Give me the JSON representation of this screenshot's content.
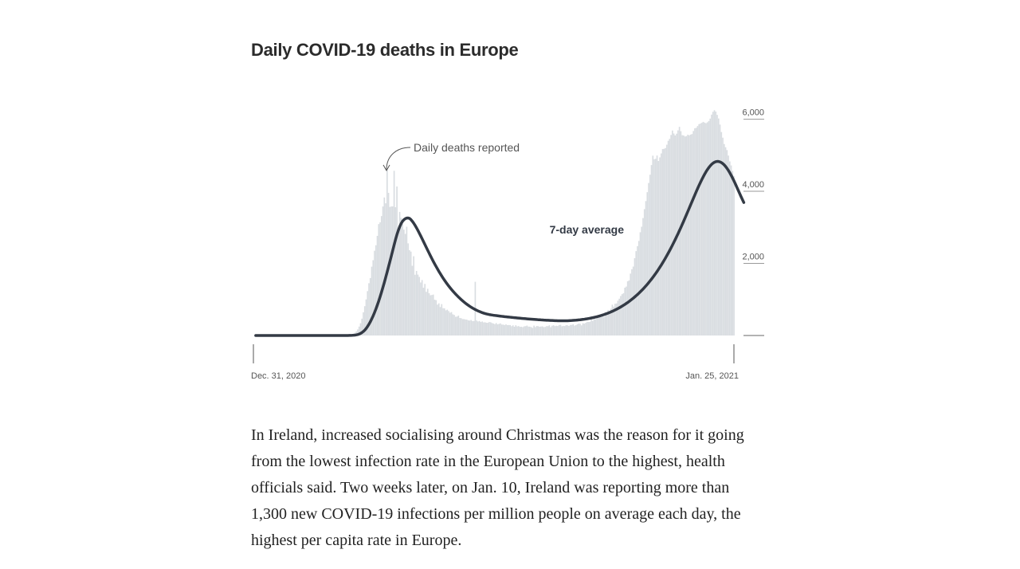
{
  "chart_data": {
    "type": "bar",
    "title": "Daily COVID-19 deaths in Europe",
    "y_ticks": [
      0,
      2000,
      4000,
      6000
    ],
    "y_tick_labels": [
      "",
      "2,000",
      "4,000",
      "6,000"
    ],
    "ylim": [
      0,
      6300
    ],
    "x_start_label": "Dec. 31, 2020",
    "x_end_label": "Jan. 25, 2021",
    "annotations": {
      "daily": "Daily deaths reported",
      "average": "7-day average"
    },
    "colors": {
      "bars": "#d9dde1",
      "line": "#333a45",
      "axis": "#9a9a9a"
    },
    "series": [
      {
        "name": "Daily deaths reported",
        "values": [
          0,
          0,
          0,
          0,
          0,
          0,
          0,
          0,
          0,
          0,
          0,
          0,
          0,
          0,
          0,
          0,
          0,
          0,
          0,
          0,
          0,
          0,
          0,
          0,
          0,
          0,
          0,
          0,
          0,
          0,
          0,
          0,
          0,
          0,
          0,
          0,
          0,
          0,
          0,
          0,
          0,
          0,
          0,
          0,
          0,
          0,
          0,
          0,
          0,
          0,
          0,
          0,
          0,
          0,
          0,
          0,
          0,
          0,
          0,
          0,
          0,
          0,
          1,
          2,
          3,
          5,
          8,
          13,
          21,
          33,
          51,
          78,
          115,
          169,
          247,
          339,
          468,
          644,
          813,
          1001,
          1231,
          1451,
          1593,
          1909,
          2089,
          2351,
          2504,
          2764,
          3091,
          3138,
          3312,
          3579,
          3829,
          3667,
          4587,
          3957,
          3566,
          3580,
          3581,
          4569,
          3558,
          4134,
          2857,
          3428,
          3262,
          3093,
          2937,
          2819,
          3016,
          2556,
          2366,
          2327,
          1934,
          2198,
          1685,
          1790,
          1689,
          1624,
          1470,
          1539,
          1325,
          1431,
          1211,
          1296,
          1173,
          1117,
          1124,
          1135,
          993,
          981,
          856,
          892,
          790,
          871,
          758,
          754,
          698,
          717,
          678,
          632,
          650,
          587,
          570,
          519,
          525,
          552,
          487,
          479,
          456,
          456,
          444,
          440,
          420,
          414,
          430,
          402,
          402,
          1490,
          416,
          390,
          403,
          375,
          389,
          365,
          367,
          353,
          353,
          373,
          368,
          347,
          332,
          316,
          345,
          310,
          323,
          336,
          304,
          302,
          291,
          308,
          289,
          290,
          289,
          258,
          282,
          243,
          284,
          253,
          262,
          241,
          242,
          232,
          254,
          259,
          275,
          247,
          245,
          234,
          211,
          274,
          234,
          264,
          258,
          243,
          249,
          254,
          232,
          238,
          259,
          260,
          284,
          231,
          272,
          284,
          260,
          272,
          264,
          291,
          296,
          257,
          267,
          262,
          288,
          282,
          266,
          293,
          294,
          311,
          274,
          288,
          311,
          331,
          326,
          280,
          341,
          330,
          352,
          375,
          375,
          379,
          464,
          407,
          456,
          450,
          486,
          514,
          521,
          539,
          589,
          516,
          649,
          625,
          708,
          660,
          744,
          856,
          801,
          883,
          889,
          965,
          1021,
          1095,
          1146,
          1174,
          1327,
          1357,
          1504,
          1529,
          1717,
          1838,
          1912,
          2144,
          2340,
          2479,
          2623,
          2864,
          3018,
          3258,
          3505,
          3729,
          3975,
          4231,
          4460,
          4728,
          4988,
          4890,
          4901,
          4992,
          4840,
          4941,
          5051,
          5171,
          5179,
          5200,
          5293,
          5401,
          5455,
          5563,
          5686,
          5603,
          5550,
          5599,
          5690,
          5788,
          5668,
          5556,
          5549,
          5520,
          5532,
          5569,
          5553,
          5573,
          5589,
          5673,
          5748,
          5761,
          5810,
          5863,
          5879,
          5900,
          5926,
          5905,
          5890,
          5914,
          5950,
          6017,
          6127,
          6205,
          6249,
          6211,
          6119,
          6020,
          5851,
          5644,
          5488,
          5312,
          5222,
          5143,
          4991,
          4830,
          4717,
          4562,
          4426
        ]
      },
      {
        "name": "7-day average",
        "values": [
          0,
          0,
          0,
          0,
          0,
          0,
          0,
          0,
          0,
          0,
          0,
          0,
          0,
          0,
          0,
          0,
          0,
          0,
          0,
          0,
          0,
          0,
          0,
          0,
          0,
          0,
          0,
          0,
          0,
          0,
          0,
          0,
          0,
          0,
          0,
          0,
          0,
          0,
          0,
          0,
          0,
          0,
          0,
          0,
          0,
          0,
          0,
          0,
          0,
          0,
          0,
          0,
          0,
          0,
          0,
          0,
          0,
          0,
          0,
          0,
          0,
          0,
          0,
          0,
          0,
          0,
          1,
          2,
          3,
          5,
          8,
          12,
          18,
          27,
          40,
          58,
          82,
          112,
          150,
          197,
          252,
          314,
          383,
          463,
          548,
          641,
          741,
          848,
          961,
          1082,
          1209,
          1340,
          1476,
          1618,
          1763,
          1910,
          2061,
          2210,
          2364,
          2517,
          2665,
          2800,
          2919,
          3022,
          3106,
          3170,
          3213,
          3241,
          3258,
          3260,
          3248,
          3214,
          3168,
          3114,
          3052,
          2985,
          2914,
          2838,
          2761,
          2683,
          2602,
          2522,
          2442,
          2363,
          2285,
          2207,
          2130,
          2055,
          1983,
          1913,
          1845,
          1778,
          1714,
          1651,
          1591,
          1533,
          1477,
          1424,
          1373,
          1324,
          1276,
          1231,
          1188,
          1146,
          1106,
          1067,
          1030,
          994,
          960,
          927,
          896,
          866,
          838,
          811,
          786,
          762,
          740,
          719,
          700,
          682,
          665,
          649,
          634,
          621,
          609,
          598,
          589,
          581,
          574,
          568,
          562,
          557,
          552,
          547,
          542,
          537,
          532,
          528,
          523,
          519,
          515,
          511,
          507,
          503,
          499,
          495,
          491,
          487,
          483,
          480,
          476,
          472,
          469,
          466,
          462,
          459,
          456,
          453,
          450,
          447,
          444,
          441,
          438,
          436,
          433,
          431,
          428,
          426,
          424,
          422,
          420,
          418,
          416,
          414,
          412,
          411,
          410,
          409,
          408,
          408,
          408,
          408,
          409,
          410,
          412,
          414,
          416,
          419,
          422,
          425,
          429,
          433,
          437,
          442,
          447,
          452,
          458,
          464,
          471,
          478,
          486,
          494,
          503,
          512,
          522,
          532,
          543,
          555,
          567,
          580,
          594,
          608,
          623,
          638,
          654,
          671,
          689,
          708,
          728,
          748,
          770,
          792,
          815,
          839,
          864,
          890,
          917,
          945,
          975,
          1005,
          1036,
          1069,
          1103,
          1138,
          1174,
          1212,
          1251,
          1291,
          1333,
          1376,
          1421,
          1467,
          1515,
          1564,
          1615,
          1668,
          1722,
          1778,
          1836,
          1895,
          1956,
          2019,
          2084,
          2150,
          2218,
          2288,
          2360,
          2434,
          2509,
          2586,
          2665,
          2746,
          2828,
          2912,
          2997,
          3084,
          3172,
          3262,
          3352,
          3443,
          3535,
          3627,
          3719,
          3810,
          3901,
          3991,
          4079,
          4165,
          4248,
          4328,
          4404,
          4476,
          4543,
          4604,
          4659,
          4707,
          4748,
          4781,
          4806,
          4822,
          4829,
          4827,
          4816,
          4796,
          4768,
          4732,
          4688,
          4636,
          4577,
          4512,
          4441,
          4365,
          4285,
          4202,
          4116,
          4029,
          3942,
          3855,
          3771,
          3689
        ]
      }
    ]
  },
  "article": {
    "paragraph": "In Ireland, increased socialising around Christmas was the reason for it going from the lowest infection rate in the European Union to the highest, health officials said. Two weeks later, on Jan. 10, Ireland was reporting more than 1,300 new COVID-19 infections per million people on average each day, the highest per capita rate in Europe."
  }
}
